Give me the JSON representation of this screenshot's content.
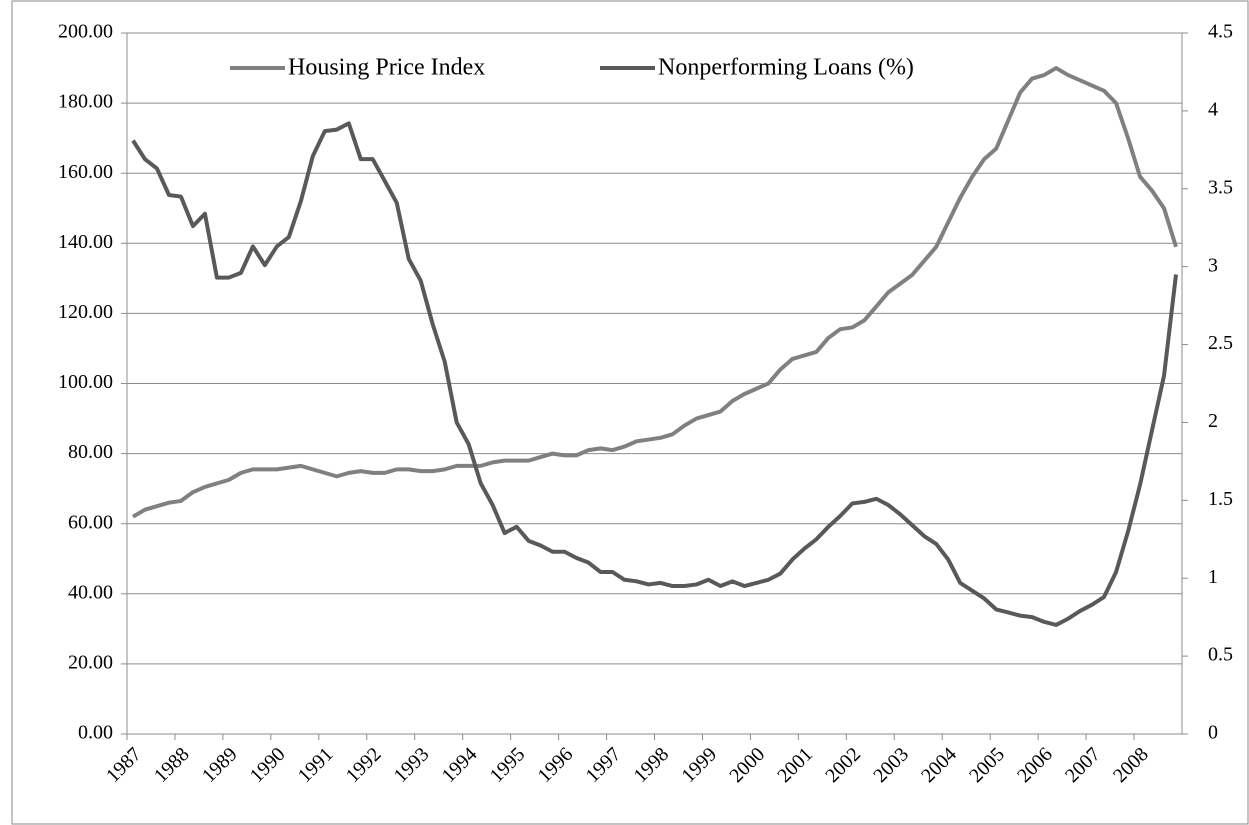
{
  "chart_data": {
    "type": "line",
    "categories": [
      "1987",
      null,
      null,
      null,
      "1988",
      null,
      null,
      null,
      "1989",
      null,
      null,
      null,
      "1990",
      null,
      null,
      null,
      "1991",
      null,
      null,
      null,
      "1992",
      null,
      null,
      null,
      "1993",
      null,
      null,
      null,
      "1994",
      null,
      null,
      null,
      "1995",
      null,
      null,
      null,
      "1996",
      null,
      null,
      null,
      "1997",
      null,
      null,
      null,
      "1998",
      null,
      null,
      null,
      "1999",
      null,
      null,
      null,
      "2000",
      null,
      null,
      null,
      "2001",
      null,
      null,
      null,
      "2002",
      null,
      null,
      null,
      "2003",
      null,
      null,
      null,
      "2004",
      null,
      null,
      null,
      "2005",
      null,
      null,
      null,
      "2006",
      null,
      null,
      null,
      "2007",
      null,
      null,
      null,
      "2008",
      null,
      null,
      null
    ],
    "series": [
      {
        "name": "Housing Price Index",
        "color": "#808080",
        "values": [
          62,
          64,
          65,
          66,
          66.5,
          69,
          70.5,
          71.5,
          72.5,
          74.5,
          75.5,
          75.5,
          75.5,
          76,
          76.5,
          75.5,
          74.5,
          73.5,
          74.5,
          75,
          74.5,
          74.5,
          75.5,
          75.5,
          75,
          75,
          75.5,
          76.5,
          76.5,
          76.5,
          77.5,
          78,
          78,
          78,
          79,
          80,
          79.5,
          79.5,
          81,
          81.5,
          81,
          82,
          83.5,
          84,
          84.5,
          85.5,
          88,
          90,
          91,
          92,
          95,
          97,
          98.5,
          100,
          104,
          107,
          108,
          109,
          113,
          115.5,
          116,
          118,
          122,
          126,
          128.5,
          131,
          135,
          139,
          146,
          153,
          159,
          164,
          167,
          175,
          183,
          187,
          188,
          190,
          188,
          186.5,
          185,
          183.5,
          180,
          170,
          159,
          155,
          150,
          139
        ]
      },
      {
        "name": "Nonperforming Loans (%)",
        "color": "#595959",
        "axis": "y2",
        "values": [
          3.81,
          3.69,
          3.63,
          3.46,
          3.45,
          3.26,
          3.34,
          2.93,
          2.93,
          2.96,
          3.13,
          3.01,
          3.13,
          3.19,
          3.42,
          3.71,
          3.87,
          3.88,
          3.92,
          3.69,
          3.69,
          3.55,
          3.41,
          3.05,
          2.91,
          2.63,
          2.39,
          2.0,
          1.86,
          1.61,
          1.47,
          1.29,
          1.33,
          1.24,
          1.21,
          1.17,
          1.17,
          1.13,
          1.1,
          1.04,
          1.04,
          0.99,
          0.98,
          0.96,
          0.97,
          0.95,
          0.95,
          0.96,
          0.99,
          0.95,
          0.98,
          0.95,
          0.97,
          0.99,
          1.03,
          1.12,
          1.19,
          1.25,
          1.33,
          1.4,
          1.48,
          1.49,
          1.51,
          1.47,
          1.41,
          1.34,
          1.27,
          1.22,
          1.12,
          0.97,
          0.92,
          0.87,
          0.8,
          0.78,
          0.76,
          0.75,
          0.72,
          0.7,
          0.74,
          0.79,
          0.83,
          0.88,
          1.04,
          1.3,
          1.6,
          1.95,
          2.3,
          2.95
        ]
      }
    ],
    "ylim": [
      0,
      200
    ],
    "yticks": [
      {
        "value": 0,
        "label": "0.00"
      },
      {
        "value": 20,
        "label": "20.00"
      },
      {
        "value": 40,
        "label": "40.00"
      },
      {
        "value": 60,
        "label": "60.00"
      },
      {
        "value": 80,
        "label": "80.00"
      },
      {
        "value": 100,
        "label": "100.00"
      },
      {
        "value": 120,
        "label": "120.00"
      },
      {
        "value": 140,
        "label": "140.00"
      },
      {
        "value": 160,
        "label": "160.00"
      },
      {
        "value": 180,
        "label": "180.00"
      },
      {
        "value": 200,
        "label": "200.00"
      }
    ],
    "y2lim": [
      0,
      4.5
    ],
    "y2ticks": [
      0,
      0.5,
      1,
      1.5,
      2,
      2.5,
      3,
      3.5,
      4,
      4.5
    ],
    "grid": true,
    "legend": "top"
  }
}
